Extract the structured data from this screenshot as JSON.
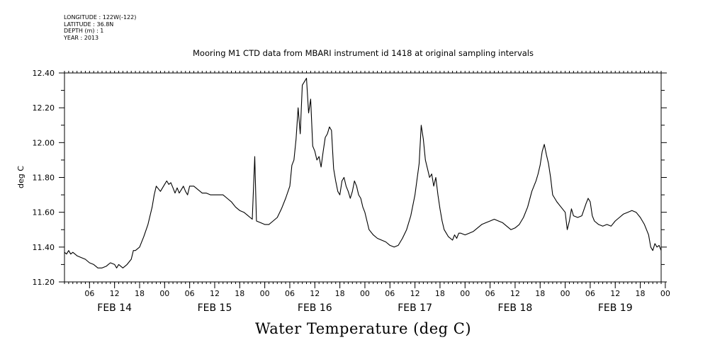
{
  "meta": {
    "longitude": "LONGITUDE : 122W(-122)",
    "latitude": "LATITUDE : 36.8N",
    "depth": "DEPTH (m) : 1",
    "year": "YEAR : 2013"
  },
  "chart_data": {
    "type": "line",
    "title": "Mooring M1 CTD data from MBARI instrument id 1418 at original sampling intervals",
    "xlabel": "Water Temperature (deg C)",
    "ylabel": "deg C",
    "ylim": [
      11.2,
      12.4
    ],
    "yticks": [
      "11.20",
      "11.40",
      "11.60",
      "11.80",
      "12.00",
      "12.20",
      "12.40"
    ],
    "xlim_hours": [
      0,
      143
    ],
    "hour_tick_labels": [
      "06",
      "12",
      "18",
      "00",
      "06",
      "12",
      "18",
      "00",
      "06",
      "12",
      "18",
      "00",
      "06",
      "12",
      "18",
      "00",
      "06",
      "12",
      "18",
      "00",
      "06",
      "12",
      "18",
      "00"
    ],
    "day_labels": [
      "FEB 14",
      "FEB 15",
      "FEB 16",
      "FEB 17",
      "FEB 18",
      "FEB 19"
    ],
    "grid": false,
    "series": [
      {
        "points": [
          [
            0,
            11.37
          ],
          [
            0.5,
            11.36
          ],
          [
            1,
            11.38
          ],
          [
            1.5,
            11.36
          ],
          [
            2,
            11.37
          ],
          [
            3,
            11.35
          ],
          [
            4,
            11.34
          ],
          [
            5,
            11.33
          ],
          [
            6,
            11.31
          ],
          [
            7,
            11.3
          ],
          [
            8,
            11.28
          ],
          [
            9,
            11.28
          ],
          [
            10,
            11.29
          ],
          [
            10.5,
            11.3
          ],
          [
            11,
            11.31
          ],
          [
            12,
            11.3
          ],
          [
            12.5,
            11.28
          ],
          [
            13,
            11.3
          ],
          [
            14,
            11.28
          ],
          [
            15,
            11.3
          ],
          [
            16,
            11.33
          ],
          [
            16.5,
            11.38
          ],
          [
            17,
            11.38
          ],
          [
            18,
            11.4
          ],
          [
            19,
            11.46
          ],
          [
            20,
            11.53
          ],
          [
            21,
            11.63
          ],
          [
            21.5,
            11.7
          ],
          [
            22,
            11.75
          ],
          [
            23,
            11.72
          ],
          [
            24,
            11.76
          ],
          [
            24.5,
            11.78
          ],
          [
            25,
            11.76
          ],
          [
            25.5,
            11.77
          ],
          [
            26,
            11.74
          ],
          [
            26.5,
            11.71
          ],
          [
            27,
            11.74
          ],
          [
            27.5,
            11.71
          ],
          [
            28,
            11.73
          ],
          [
            28.5,
            11.75
          ],
          [
            29,
            11.72
          ],
          [
            29.5,
            11.7
          ],
          [
            30,
            11.75
          ],
          [
            31,
            11.75
          ],
          [
            32,
            11.73
          ],
          [
            33,
            11.71
          ],
          [
            34,
            11.71
          ],
          [
            35,
            11.7
          ],
          [
            36,
            11.7
          ],
          [
            37,
            11.7
          ],
          [
            38,
            11.7
          ],
          [
            39,
            11.68
          ],
          [
            40,
            11.66
          ],
          [
            41,
            11.63
          ],
          [
            42,
            11.61
          ],
          [
            43,
            11.6
          ],
          [
            44,
            11.58
          ],
          [
            45,
            11.56
          ],
          [
            46,
            11.55
          ],
          [
            47,
            11.54
          ],
          [
            48,
            11.53
          ],
          [
            49,
            11.53
          ],
          [
            50,
            11.55
          ],
          [
            51,
            11.57
          ],
          [
            52,
            11.62
          ],
          [
            53,
            11.68
          ],
          [
            54,
            11.75
          ],
          [
            54.5,
            11.87
          ],
          [
            55,
            11.9
          ],
          [
            45.6,
            11.92
          ],
          [
            55.5,
            12.02
          ],
          [
            56,
            12.2
          ],
          [
            56.5,
            12.05
          ],
          [
            57,
            12.33
          ],
          [
            57.5,
            12.35
          ],
          [
            58,
            12.37
          ],
          [
            58.5,
            12.17
          ],
          [
            59,
            12.25
          ],
          [
            59.5,
            11.98
          ],
          [
            60,
            11.95
          ],
          [
            60.5,
            11.9
          ],
          [
            61,
            11.92
          ],
          [
            61.5,
            11.86
          ],
          [
            62,
            11.95
          ],
          [
            62.5,
            12.03
          ],
          [
            63,
            12.05
          ],
          [
            63.5,
            12.09
          ],
          [
            64,
            12.07
          ],
          [
            64.5,
            11.85
          ],
          [
            65,
            11.78
          ],
          [
            65.5,
            11.72
          ],
          [
            66,
            11.7
          ],
          [
            66.5,
            11.78
          ],
          [
            67,
            11.8
          ],
          [
            67.5,
            11.75
          ],
          [
            68,
            11.72
          ],
          [
            68.5,
            11.68
          ],
          [
            69,
            11.72
          ],
          [
            69.5,
            11.78
          ],
          [
            70,
            11.75
          ],
          [
            70.5,
            11.7
          ],
          [
            71,
            11.68
          ],
          [
            71.5,
            11.63
          ],
          [
            72,
            11.6
          ],
          [
            73,
            11.5
          ],
          [
            74,
            11.47
          ],
          [
            75,
            11.45
          ],
          [
            76,
            11.44
          ],
          [
            77,
            11.43
          ],
          [
            78,
            11.41
          ],
          [
            79,
            11.4
          ],
          [
            80,
            11.41
          ],
          [
            81,
            11.45
          ],
          [
            82,
            11.5
          ],
          [
            83,
            11.58
          ],
          [
            84,
            11.7
          ],
          [
            85,
            11.88
          ],
          [
            85.5,
            12.1
          ],
          [
            86,
            12.02
          ],
          [
            86.5,
            11.9
          ],
          [
            87,
            11.85
          ],
          [
            87.5,
            11.8
          ],
          [
            88,
            11.82
          ],
          [
            88.5,
            11.75
          ],
          [
            89,
            11.8
          ],
          [
            89.5,
            11.7
          ],
          [
            90,
            11.62
          ],
          [
            90.5,
            11.55
          ],
          [
            91,
            11.5
          ],
          [
            91.5,
            11.48
          ],
          [
            92,
            11.46
          ],
          [
            93,
            11.44
          ],
          [
            93.5,
            11.47
          ],
          [
            94,
            11.45
          ],
          [
            94.5,
            11.48
          ],
          [
            95,
            11.48
          ],
          [
            96,
            11.47
          ],
          [
            97,
            11.48
          ],
          [
            98,
            11.49
          ],
          [
            99,
            11.51
          ],
          [
            100,
            11.53
          ],
          [
            101,
            11.54
          ],
          [
            102,
            11.55
          ],
          [
            103,
            11.56
          ],
          [
            104,
            11.55
          ],
          [
            105,
            11.54
          ],
          [
            106,
            11.52
          ],
          [
            107,
            11.5
          ],
          [
            108,
            11.51
          ],
          [
            109,
            11.53
          ],
          [
            110,
            11.57
          ],
          [
            111,
            11.63
          ],
          [
            112,
            11.72
          ],
          [
            113,
            11.78
          ],
          [
            113.5,
            11.82
          ],
          [
            114,
            11.87
          ],
          [
            114.5,
            11.95
          ],
          [
            115,
            11.99
          ],
          [
            115.5,
            11.93
          ],
          [
            116,
            11.88
          ],
          [
            116.5,
            11.8
          ],
          [
            117,
            11.7
          ],
          [
            118,
            11.66
          ],
          [
            119,
            11.63
          ],
          [
            120,
            11.6
          ],
          [
            120.5,
            11.5
          ],
          [
            121,
            11.55
          ],
          [
            121.5,
            11.62
          ],
          [
            122,
            11.58
          ],
          [
            123,
            11.57
          ],
          [
            124,
            11.58
          ],
          [
            125,
            11.65
          ],
          [
            125.5,
            11.68
          ],
          [
            126,
            11.66
          ],
          [
            126.5,
            11.58
          ],
          [
            127,
            11.55
          ],
          [
            128,
            11.53
          ],
          [
            129,
            11.52
          ],
          [
            130,
            11.53
          ],
          [
            131,
            11.52
          ],
          [
            132,
            11.55
          ],
          [
            133,
            11.57
          ],
          [
            134,
            11.59
          ],
          [
            135,
            11.6
          ],
          [
            136,
            11.61
          ],
          [
            137,
            11.6
          ],
          [
            138,
            11.57
          ],
          [
            139,
            11.53
          ],
          [
            140,
            11.47
          ],
          [
            140.5,
            11.4
          ],
          [
            141,
            11.38
          ],
          [
            141.5,
            11.42
          ],
          [
            142,
            11.4
          ],
          [
            142.5,
            11.41
          ],
          [
            143,
            11.38
          ]
        ]
      }
    ]
  }
}
